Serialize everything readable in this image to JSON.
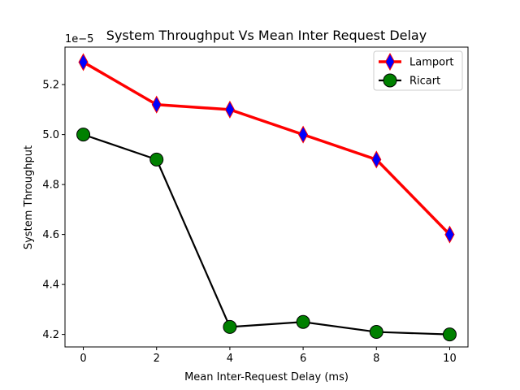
{
  "chart_data": {
    "type": "line",
    "title": "System Throughput Vs Mean Inter Request Delay",
    "xlabel": "Mean Inter-Request Delay (ms)",
    "ylabel": "System Throughput",
    "y_offset_label": "1e−5",
    "xlim": [
      -0.5,
      10.5
    ],
    "ylim": [
      4.15,
      5.35
    ],
    "x_ticks": [
      0,
      2,
      4,
      6,
      8,
      10
    ],
    "x_tick_labels": [
      "0",
      "2",
      "4",
      "6",
      "8",
      "10"
    ],
    "y_ticks": [
      4.2,
      4.4,
      4.6,
      4.8,
      5.0,
      5.2
    ],
    "y_tick_labels": [
      "4.2",
      "4.4",
      "4.6",
      "4.8",
      "5.0",
      "5.2"
    ],
    "grid": false,
    "legend_position": "top-right",
    "x": [
      0,
      2,
      4,
      6,
      8,
      10
    ],
    "series": [
      {
        "name": "Lamport",
        "values": [
          5.29,
          5.12,
          5.1,
          5.0,
          4.9,
          4.6
        ],
        "line_color": "#ff0000",
        "marker": "diamond",
        "marker_fill": "#0000ff",
        "marker_edge": "#ff0000"
      },
      {
        "name": "Ricart",
        "values": [
          5.0,
          4.9,
          4.23,
          4.25,
          4.21,
          4.2
        ],
        "line_color": "#000000",
        "marker": "circle",
        "marker_fill": "#008000",
        "marker_edge": "#000000"
      }
    ]
  }
}
